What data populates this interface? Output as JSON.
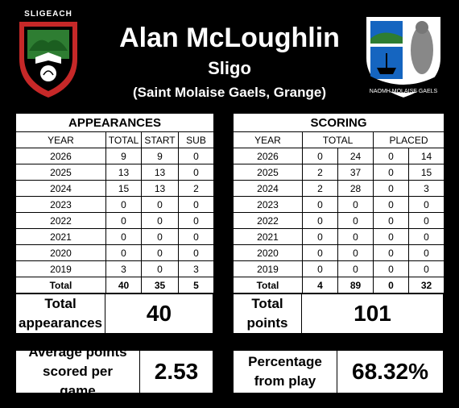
{
  "player": {
    "name": "Alan McLoughlin",
    "county": "Sligo",
    "club": "(Saint Molaise Gaels, Grange)"
  },
  "crest_left": {
    "text": "SLIGEACH",
    "colors": [
      "#000000",
      "#2e7d32",
      "#c62828",
      "#ffffff"
    ]
  },
  "crest_right": {
    "text": "NAOMH MOLAISE GAELS",
    "colors": [
      "#000000",
      "#1565c0",
      "#ffffff"
    ]
  },
  "appearances": {
    "title": "APPEARANCES",
    "headers": [
      "YEAR",
      "TOTAL",
      "START",
      "SUB"
    ],
    "rows": [
      [
        "2026",
        "9",
        "9",
        "0"
      ],
      [
        "2025",
        "13",
        "13",
        "0"
      ],
      [
        "2024",
        "15",
        "13",
        "2"
      ],
      [
        "2023",
        "0",
        "0",
        "0"
      ],
      [
        "2022",
        "0",
        "0",
        "0"
      ],
      [
        "2021",
        "0",
        "0",
        "0"
      ],
      [
        "2020",
        "0",
        "0",
        "0"
      ],
      [
        "2019",
        "3",
        "0",
        "3"
      ]
    ],
    "total": [
      "Total",
      "40",
      "35",
      "5"
    ]
  },
  "scoring": {
    "title": "SCORING",
    "headers": [
      "YEAR",
      "TOTAL",
      "PLACED"
    ],
    "rows": [
      [
        "2026",
        "0",
        "24",
        "0",
        "14"
      ],
      [
        "2025",
        "2",
        "37",
        "0",
        "15"
      ],
      [
        "2024",
        "2",
        "28",
        "0",
        "3"
      ],
      [
        "2023",
        "0",
        "0",
        "0",
        "0"
      ],
      [
        "2022",
        "0",
        "0",
        "0",
        "0"
      ],
      [
        "2021",
        "0",
        "0",
        "0",
        "0"
      ],
      [
        "2020",
        "0",
        "0",
        "0",
        "0"
      ],
      [
        "2019",
        "0",
        "0",
        "0",
        "0"
      ]
    ],
    "total": [
      "Total",
      "4",
      "89",
      "0",
      "32"
    ]
  },
  "summary": {
    "total_appearances_label": "Total appearances",
    "total_appearances": "40",
    "total_points_label": "Total points",
    "total_points": "101",
    "avg_label": "Average points scored per game",
    "avg_value": "2.53",
    "pct_label": "Percentage from play",
    "pct_value": "68.32%"
  }
}
